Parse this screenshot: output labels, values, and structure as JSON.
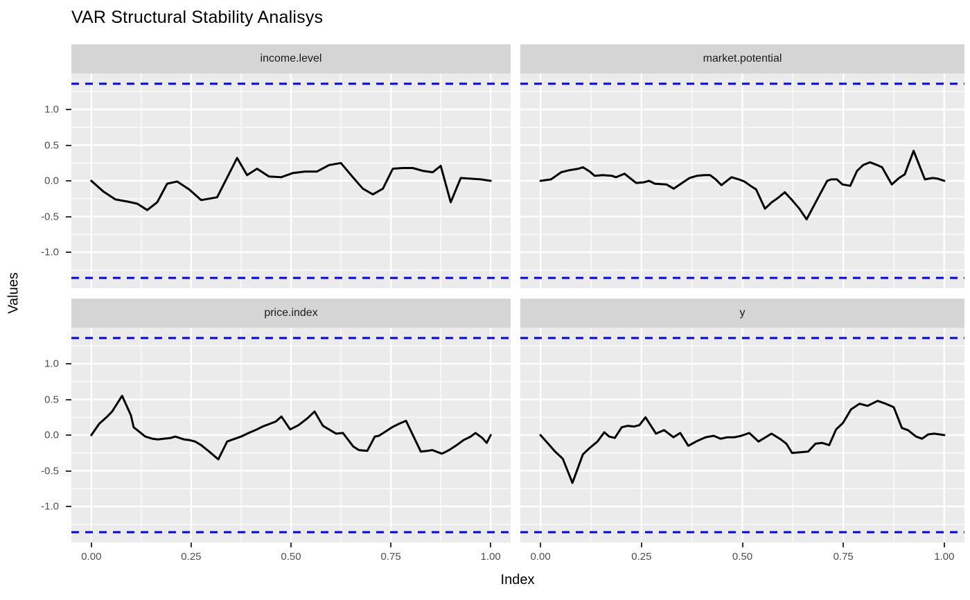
{
  "chart_data": {
    "type": "line",
    "title": "VAR Structural Stability Analisys",
    "xlabel": "Index",
    "ylabel": "Values",
    "legend": "none",
    "grid": {
      "major": true,
      "minor": true,
      "color": "#FFFFFF"
    },
    "panel_bg": "#EBEBEB",
    "strip_bg": "#D5D5D5",
    "line_color": "#000000",
    "boundary": {
      "value": 1.36,
      "style": "dashed",
      "color": "#0000FF"
    },
    "xlim": [
      -0.05,
      1.05
    ],
    "ylim": [
      -1.505,
      1.505
    ],
    "x_ticks": {
      "labels": [
        "0.00",
        "0.25",
        "0.50",
        "0.75",
        "1.00"
      ],
      "values": [
        0,
        0.25,
        0.5,
        0.75,
        1
      ]
    },
    "y_ticks": {
      "labels": [
        "1.0",
        "0.5",
        "0.0",
        "-0.5",
        "-1.0"
      ],
      "values": [
        1,
        0.5,
        0,
        -0.5,
        -1
      ]
    },
    "minor_x": [
      0.125,
      0.375,
      0.625,
      0.875
    ],
    "minor_y": [
      -1.25,
      -0.75,
      -0.25,
      0.25,
      0.75,
      1.25
    ],
    "facets": [
      {
        "label": "income.level",
        "points": [
          [
            0,
            0
          ],
          [
            0.03,
            -0.15
          ],
          [
            0.06,
            -0.26
          ],
          [
            0.09,
            -0.29
          ],
          [
            0.115,
            -0.32
          ],
          [
            0.14,
            -0.41
          ],
          [
            0.165,
            -0.3
          ],
          [
            0.19,
            -0.04
          ],
          [
            0.215,
            -0.01
          ],
          [
            0.245,
            -0.12
          ],
          [
            0.275,
            -0.27
          ],
          [
            0.315,
            -0.23
          ],
          [
            0.365,
            0.32
          ],
          [
            0.39,
            0.08
          ],
          [
            0.415,
            0.17
          ],
          [
            0.445,
            0.06
          ],
          [
            0.475,
            0.05
          ],
          [
            0.505,
            0.11
          ],
          [
            0.535,
            0.13
          ],
          [
            0.565,
            0.13
          ],
          [
            0.595,
            0.22
          ],
          [
            0.625,
            0.25
          ],
          [
            0.655,
            0.05
          ],
          [
            0.68,
            -0.11
          ],
          [
            0.705,
            -0.19
          ],
          [
            0.73,
            -0.11
          ],
          [
            0.755,
            0.17
          ],
          [
            0.78,
            0.18
          ],
          [
            0.805,
            0.18
          ],
          [
            0.83,
            0.14
          ],
          [
            0.855,
            0.12
          ],
          [
            0.875,
            0.21
          ],
          [
            0.9,
            -0.3
          ],
          [
            0.925,
            0.04
          ],
          [
            0.95,
            0.03
          ],
          [
            0.975,
            0.02
          ],
          [
            1,
            0
          ]
        ]
      },
      {
        "label": "market.potential",
        "points": [
          [
            0,
            0
          ],
          [
            0.026,
            0.02
          ],
          [
            0.051,
            0.12
          ],
          [
            0.072,
            0.15
          ],
          [
            0.094,
            0.17
          ],
          [
            0.105,
            0.19
          ],
          [
            0.122,
            0.13
          ],
          [
            0.134,
            0.07
          ],
          [
            0.154,
            0.08
          ],
          [
            0.177,
            0.07
          ],
          [
            0.187,
            0.05
          ],
          [
            0.208,
            0.1
          ],
          [
            0.237,
            -0.03
          ],
          [
            0.256,
            -0.02
          ],
          [
            0.269,
            0
          ],
          [
            0.283,
            -0.04
          ],
          [
            0.312,
            -0.05
          ],
          [
            0.33,
            -0.11
          ],
          [
            0.369,
            0.04
          ],
          [
            0.387,
            0.07
          ],
          [
            0.405,
            0.08
          ],
          [
            0.42,
            0.08
          ],
          [
            0.434,
            0.02
          ],
          [
            0.448,
            -0.06
          ],
          [
            0.473,
            0.05
          ],
          [
            0.491,
            0.02
          ],
          [
            0.505,
            -0.01
          ],
          [
            0.52,
            -0.07
          ],
          [
            0.534,
            -0.12
          ],
          [
            0.556,
            -0.39
          ],
          [
            0.573,
            -0.3
          ],
          [
            0.588,
            -0.24
          ],
          [
            0.605,
            -0.16
          ],
          [
            0.623,
            -0.27
          ],
          [
            0.641,
            -0.39
          ],
          [
            0.659,
            -0.54
          ],
          [
            0.691,
            -0.2
          ],
          [
            0.71,
            0
          ],
          [
            0.72,
            0.02
          ],
          [
            0.734,
            0.02
          ],
          [
            0.748,
            -0.05
          ],
          [
            0.767,
            -0.07
          ],
          [
            0.784,
            0.14
          ],
          [
            0.799,
            0.22
          ],
          [
            0.816,
            0.26
          ],
          [
            0.834,
            0.22
          ],
          [
            0.846,
            0.19
          ],
          [
            0.87,
            -0.05
          ],
          [
            0.888,
            0.04
          ],
          [
            0.902,
            0.09
          ],
          [
            0.924,
            0.42
          ],
          [
            0.952,
            0.02
          ],
          [
            0.971,
            0.04
          ],
          [
            0.984,
            0.03
          ],
          [
            1,
            0
          ]
        ]
      },
      {
        "label": "price.index",
        "points": [
          [
            0,
            0
          ],
          [
            0.02,
            0.16
          ],
          [
            0.038,
            0.25
          ],
          [
            0.052,
            0.33
          ],
          [
            0.077,
            0.55
          ],
          [
            0.099,
            0.28
          ],
          [
            0.106,
            0.11
          ],
          [
            0.124,
            0.03
          ],
          [
            0.135,
            -0.02
          ],
          [
            0.153,
            -0.05
          ],
          [
            0.167,
            -0.06
          ],
          [
            0.181,
            -0.05
          ],
          [
            0.199,
            -0.04
          ],
          [
            0.21,
            -0.02
          ],
          [
            0.232,
            -0.06
          ],
          [
            0.246,
            -0.07
          ],
          [
            0.26,
            -0.09
          ],
          [
            0.275,
            -0.14
          ],
          [
            0.297,
            -0.24
          ],
          [
            0.318,
            -0.34
          ],
          [
            0.34,
            -0.09
          ],
          [
            0.35,
            -0.07
          ],
          [
            0.375,
            -0.02
          ],
          [
            0.394,
            0.03
          ],
          [
            0.411,
            0.07
          ],
          [
            0.429,
            0.12
          ],
          [
            0.448,
            0.16
          ],
          [
            0.462,
            0.19
          ],
          [
            0.476,
            0.26
          ],
          [
            0.498,
            0.08
          ],
          [
            0.519,
            0.14
          ],
          [
            0.542,
            0.24
          ],
          [
            0.559,
            0.33
          ],
          [
            0.58,
            0.13
          ],
          [
            0.595,
            0.08
          ],
          [
            0.613,
            0.02
          ],
          [
            0.63,
            0.03
          ],
          [
            0.656,
            -0.16
          ],
          [
            0.67,
            -0.21
          ],
          [
            0.691,
            -0.22
          ],
          [
            0.71,
            -0.02
          ],
          [
            0.72,
            -0.01
          ],
          [
            0.734,
            0.04
          ],
          [
            0.753,
            0.11
          ],
          [
            0.771,
            0.16
          ],
          [
            0.788,
            0.2
          ],
          [
            0.825,
            -0.23
          ],
          [
            0.842,
            -0.22
          ],
          [
            0.854,
            -0.21
          ],
          [
            0.868,
            -0.24
          ],
          [
            0.878,
            -0.26
          ],
          [
            0.896,
            -0.21
          ],
          [
            0.915,
            -0.14
          ],
          [
            0.932,
            -0.07
          ],
          [
            0.95,
            -0.02
          ],
          [
            0.962,
            0.03
          ],
          [
            0.979,
            -0.04
          ],
          [
            0.99,
            -0.11
          ],
          [
            1,
            0
          ]
        ]
      },
      {
        "label": "y",
        "points": [
          [
            0,
            0
          ],
          [
            0.019,
            -0.12
          ],
          [
            0.036,
            -0.23
          ],
          [
            0.055,
            -0.33
          ],
          [
            0.079,
            -0.67
          ],
          [
            0.105,
            -0.27
          ],
          [
            0.122,
            -0.18
          ],
          [
            0.141,
            -0.09
          ],
          [
            0.158,
            0.04
          ],
          [
            0.17,
            -0.02
          ],
          [
            0.184,
            -0.04
          ],
          [
            0.201,
            0.11
          ],
          [
            0.216,
            0.13
          ],
          [
            0.232,
            0.12
          ],
          [
            0.245,
            0.14
          ],
          [
            0.26,
            0.25
          ],
          [
            0.286,
            0.02
          ],
          [
            0.306,
            0.07
          ],
          [
            0.329,
            -0.03
          ],
          [
            0.346,
            0.03
          ],
          [
            0.366,
            -0.15
          ],
          [
            0.389,
            -0.08
          ],
          [
            0.409,
            -0.03
          ],
          [
            0.429,
            -0.01
          ],
          [
            0.446,
            -0.05
          ],
          [
            0.463,
            -0.03
          ],
          [
            0.48,
            -0.03
          ],
          [
            0.497,
            -0.01
          ],
          [
            0.517,
            0.03
          ],
          [
            0.54,
            -0.09
          ],
          [
            0.572,
            0.02
          ],
          [
            0.595,
            -0.06
          ],
          [
            0.609,
            -0.12
          ],
          [
            0.623,
            -0.25
          ],
          [
            0.643,
            -0.24
          ],
          [
            0.663,
            -0.23
          ],
          [
            0.681,
            -0.12
          ],
          [
            0.698,
            -0.11
          ],
          [
            0.715,
            -0.14
          ],
          [
            0.732,
            0.08
          ],
          [
            0.749,
            0.17
          ],
          [
            0.769,
            0.36
          ],
          [
            0.79,
            0.44
          ],
          [
            0.81,
            0.41
          ],
          [
            0.835,
            0.48
          ],
          [
            0.855,
            0.44
          ],
          [
            0.875,
            0.39
          ],
          [
            0.895,
            0.1
          ],
          [
            0.91,
            0.07
          ],
          [
            0.93,
            -0.02
          ],
          [
            0.945,
            -0.05
          ],
          [
            0.96,
            0.01
          ],
          [
            0.975,
            0.02
          ],
          [
            1,
            0
          ]
        ]
      }
    ]
  }
}
